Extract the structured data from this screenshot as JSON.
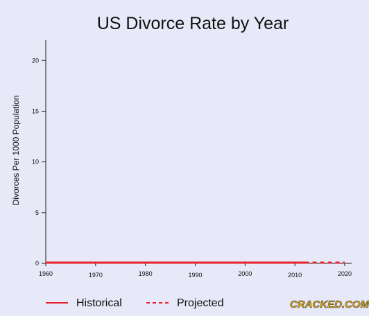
{
  "chart_data": {
    "type": "line",
    "title": "US Divorce Rate by Year",
    "xlabel": "",
    "ylabel": "Divorces Per 1000 Population",
    "xlim": [
      1960,
      2020
    ],
    "ylim": [
      0,
      22
    ],
    "x_ticks": [
      1960,
      1970,
      1980,
      1990,
      2000,
      2010,
      2020
    ],
    "y_ticks": [
      0,
      5,
      10,
      15,
      20
    ],
    "grid": false,
    "legend": "bottom",
    "series": [
      {
        "name": "Historical",
        "style": "solid",
        "color": "#e8202a",
        "x": [
          1960,
          2012
        ],
        "y": [
          0,
          0
        ]
      },
      {
        "name": "Projected",
        "style": "dashed",
        "color": "#e8202a",
        "x": [
          2012,
          2020
        ],
        "y": [
          0,
          0
        ]
      }
    ]
  },
  "watermark": "CRACKED.COM"
}
